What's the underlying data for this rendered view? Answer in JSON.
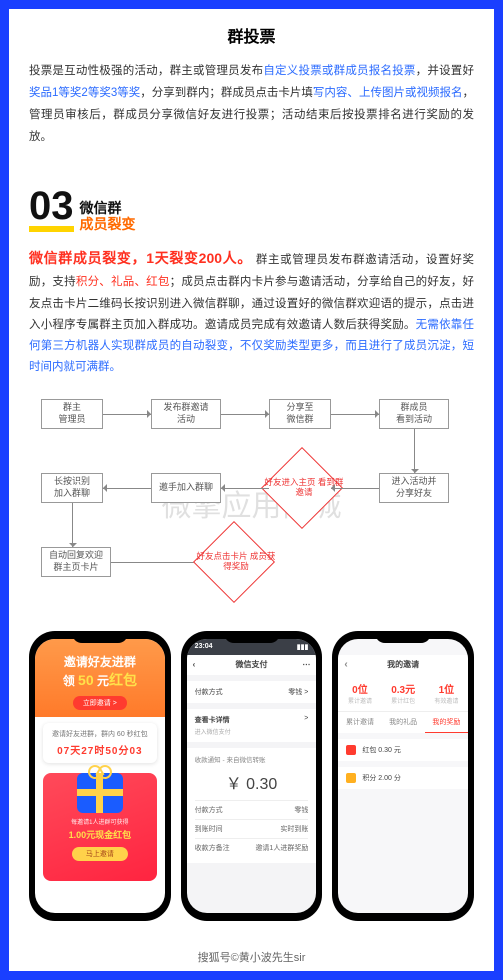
{
  "title": "群投票",
  "para1": {
    "a": "投票是互动性极强的活动，群主或管理员发布",
    "link1": "自定义投票或群成员报名投票",
    "b": "，并设置好",
    "link2": "奖品1等奖2等奖3等奖",
    "c": "，分享到群内；群成员点击卡片填",
    "link3": "写内容、上传图片或视频报名",
    "d": "，管理员审核后，群成员分享微信好友进行投票；活动结束后按投票排名进行奖励的发放。"
  },
  "section": {
    "num": "03",
    "top": "微信群",
    "bot": "成员裂变"
  },
  "para2": {
    "lead": "微信群成员裂变，1天裂变200人。",
    "a": " 群主或管理员发布群邀请活动，设置好奖励，支持",
    "r1": "积分、礼品、红包",
    "b": "；成员点击群内卡片参与邀请活动，分享给自己的好友，好友点击卡片二维码长按识别进入微信群聊，通过设置好的微信群欢迎语的提示，点击进入小程序专属群主页加入群成功。邀请成员完成有效邀请人数后获得奖励。",
    "blue": "无需依靠任何第三方机器人实现群成员的自动裂变，不仅奖励类型更多，而且进行了成员沉淀，短时间内就可满群。"
  },
  "flow": {
    "n1": "群主\n管理员",
    "n2": "发布群邀请\n活动",
    "n3": "分享至\n微信群",
    "n4": "群成员\n看到活动",
    "n5": "进入活动并\n分享好友",
    "n6": "邀手加入群聊",
    "n7": "长按识别\n加入群聊",
    "n8": "自动回复欢迎\n群主页卡片",
    "d1": "好友进入主页\n看到群邀请",
    "d2": "好友点击卡片\n成员获得奖励"
  },
  "watermark": "微擎应用商城",
  "phone1": {
    "t1a": "邀请好友进群",
    "t1b": "领",
    "t1c": "50",
    "t1d": "元",
    "t1e": "红包",
    "btn": "立即邀请 >",
    "card_h": "邀请好友进群，群内 60 秒红包",
    "count": "07天27时50分03",
    "small": "每邀请1人进群可获得",
    "amt": "1.00元现金红包",
    "go": "马上邀请"
  },
  "phone2": {
    "time": "23:04",
    "nav": "微信支付",
    "r1l": "付款方式",
    "r1r": "零钱 >",
    "sec_h": "查看卡详情",
    "sec_arrow": ">",
    "sec_sub": "进入微信支付",
    "note": "收款通知 - 来自微信转账",
    "amt": "￥ 0.30",
    "l1l": "付款方式",
    "l1r": "零钱",
    "l2l": "到账时间",
    "l2r": "实时到账",
    "l3l": "收款方备注",
    "l3r": "邀请1人进群奖励"
  },
  "phone3": {
    "nav": "我的邀请",
    "s1v": "0位",
    "s1l": "累计邀请",
    "s2v": "0.3元",
    "s2l": "累计红包",
    "s3v": "1位",
    "s3l": "有效邀请",
    "t1": "累计邀请",
    "t2": "我的礼品",
    "t3": "我的奖励",
    "i1": "红包 0.30 元",
    "i2": "积分 2.00 分"
  },
  "footer": "搜狐号©黄小波先生sir"
}
